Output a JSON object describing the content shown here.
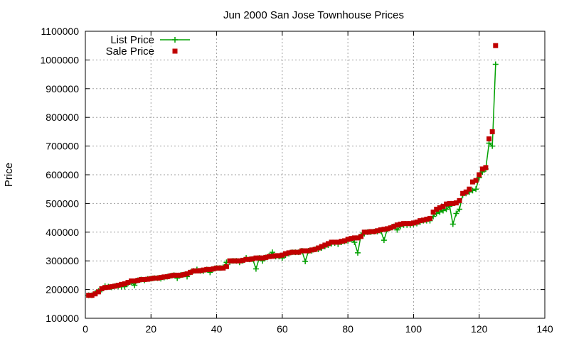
{
  "chart_data": {
    "type": "scatter",
    "title": "Jun 2000 San Jose Townhouse Prices",
    "xlabel": "",
    "ylabel": "Price",
    "xlim": [
      0,
      140
    ],
    "ylim": [
      100000,
      1100000
    ],
    "x_ticks": [
      0,
      20,
      40,
      60,
      80,
      100,
      120,
      140
    ],
    "y_ticks": [
      100000,
      200000,
      300000,
      400000,
      500000,
      600000,
      700000,
      800000,
      900000,
      1000000,
      1100000
    ],
    "grid": true,
    "legend_position": "top-left",
    "series": [
      {
        "name": "List Price",
        "style": "line+plus",
        "color": "#00a000",
        "x": [
          1,
          2,
          3,
          4,
          5,
          6,
          7,
          8,
          9,
          10,
          11,
          12,
          13,
          14,
          15,
          16,
          17,
          18,
          19,
          20,
          21,
          22,
          23,
          24,
          25,
          26,
          27,
          28,
          29,
          30,
          31,
          32,
          33,
          34,
          35,
          36,
          37,
          38,
          39,
          40,
          41,
          42,
          43,
          44,
          45,
          46,
          47,
          48,
          49,
          50,
          51,
          52,
          53,
          54,
          55,
          56,
          57,
          58,
          59,
          60,
          61,
          62,
          63,
          64,
          65,
          66,
          67,
          68,
          69,
          70,
          71,
          72,
          73,
          74,
          75,
          76,
          77,
          78,
          79,
          80,
          81,
          82,
          83,
          84,
          85,
          86,
          87,
          88,
          89,
          90,
          91,
          92,
          93,
          94,
          95,
          96,
          97,
          98,
          99,
          100,
          101,
          102,
          103,
          104,
          105,
          106,
          107,
          108,
          109,
          110,
          111,
          112,
          113,
          114,
          115,
          116,
          117,
          118,
          119,
          120,
          121,
          122,
          123,
          124,
          125
        ],
        "y": [
          180000,
          180000,
          188000,
          195000,
          200000,
          212000,
          210000,
          208000,
          212000,
          212000,
          210000,
          210000,
          222000,
          225000,
          215000,
          232000,
          235000,
          232000,
          237000,
          238000,
          240000,
          240000,
          238000,
          242000,
          245000,
          248000,
          250000,
          240000,
          250000,
          252000,
          245000,
          260000,
          265000,
          270000,
          265000,
          265000,
          270000,
          260000,
          272000,
          275000,
          275000,
          278000,
          295000,
          295000,
          300000,
          300000,
          295000,
          300000,
          310000,
          305000,
          306000,
          272000,
          310000,
          300000,
          312000,
          318000,
          330000,
          315000,
          315000,
          310000,
          320000,
          325000,
          330000,
          330000,
          330000,
          335000,
          298000,
          335000,
          335000,
          340000,
          340000,
          345000,
          350000,
          355000,
          360000,
          362000,
          358000,
          365000,
          368000,
          370000,
          375000,
          365000,
          328000,
          390000,
          395000,
          400000,
          400000,
          402000,
          402000,
          405000,
          372000,
          410000,
          415000,
          420000,
          408000,
          420000,
          425000,
          425000,
          425000,
          428000,
          430000,
          435000,
          440000,
          440000,
          440000,
          455000,
          465000,
          470000,
          475000,
          480000,
          490000,
          428000,
          465000,
          480000,
          530000,
          535000,
          540000,
          545000,
          550000,
          590000,
          610000,
          620000,
          710000,
          700000,
          985000
        ]
      },
      {
        "name": "Sale Price",
        "style": "square",
        "color": "#c00000",
        "x": [
          1,
          2,
          3,
          4,
          5,
          6,
          7,
          8,
          9,
          10,
          11,
          12,
          13,
          14,
          15,
          16,
          17,
          18,
          19,
          20,
          21,
          22,
          23,
          24,
          25,
          26,
          27,
          28,
          29,
          30,
          31,
          32,
          33,
          34,
          35,
          36,
          37,
          38,
          39,
          40,
          41,
          42,
          43,
          44,
          45,
          46,
          47,
          48,
          49,
          50,
          51,
          52,
          53,
          54,
          55,
          56,
          57,
          58,
          59,
          60,
          61,
          62,
          63,
          64,
          65,
          66,
          67,
          68,
          69,
          70,
          71,
          72,
          73,
          74,
          75,
          76,
          77,
          78,
          79,
          80,
          81,
          82,
          83,
          84,
          85,
          86,
          87,
          88,
          89,
          90,
          91,
          92,
          93,
          94,
          95,
          96,
          97,
          98,
          99,
          100,
          101,
          102,
          103,
          104,
          105,
          106,
          107,
          108,
          109,
          110,
          111,
          112,
          113,
          114,
          115,
          116,
          117,
          118,
          119,
          120,
          121,
          122,
          123,
          124,
          125
        ],
        "y": [
          180000,
          180000,
          185000,
          192000,
          203000,
          207000,
          208000,
          210000,
          212000,
          215000,
          218000,
          220000,
          225000,
          230000,
          230000,
          232000,
          235000,
          235000,
          236000,
          238000,
          240000,
          240000,
          242000,
          244000,
          245000,
          248000,
          250000,
          250000,
          250000,
          252000,
          255000,
          260000,
          265000,
          265000,
          266000,
          268000,
          270000,
          270000,
          272000,
          275000,
          275000,
          275000,
          280000,
          300000,
          300000,
          300000,
          300000,
          302000,
          305000,
          305000,
          307000,
          310000,
          310000,
          310000,
          312000,
          315000,
          316000,
          318000,
          318000,
          320000,
          325000,
          328000,
          330000,
          330000,
          330000,
          335000,
          335000,
          335000,
          338000,
          340000,
          345000,
          350000,
          355000,
          360000,
          365000,
          365000,
          365000,
          368000,
          370000,
          375000,
          378000,
          380000,
          380000,
          385000,
          400000,
          400000,
          402000,
          402000,
          405000,
          408000,
          410000,
          412000,
          415000,
          420000,
          425000,
          428000,
          430000,
          430000,
          430000,
          432000,
          435000,
          440000,
          442000,
          445000,
          448000,
          470000,
          480000,
          485000,
          490000,
          498000,
          500000,
          500000,
          502000,
          510000,
          535000,
          540000,
          550000,
          575000,
          580000,
          600000,
          620000,
          625000,
          725000,
          750000,
          1050000
        ]
      }
    ]
  }
}
